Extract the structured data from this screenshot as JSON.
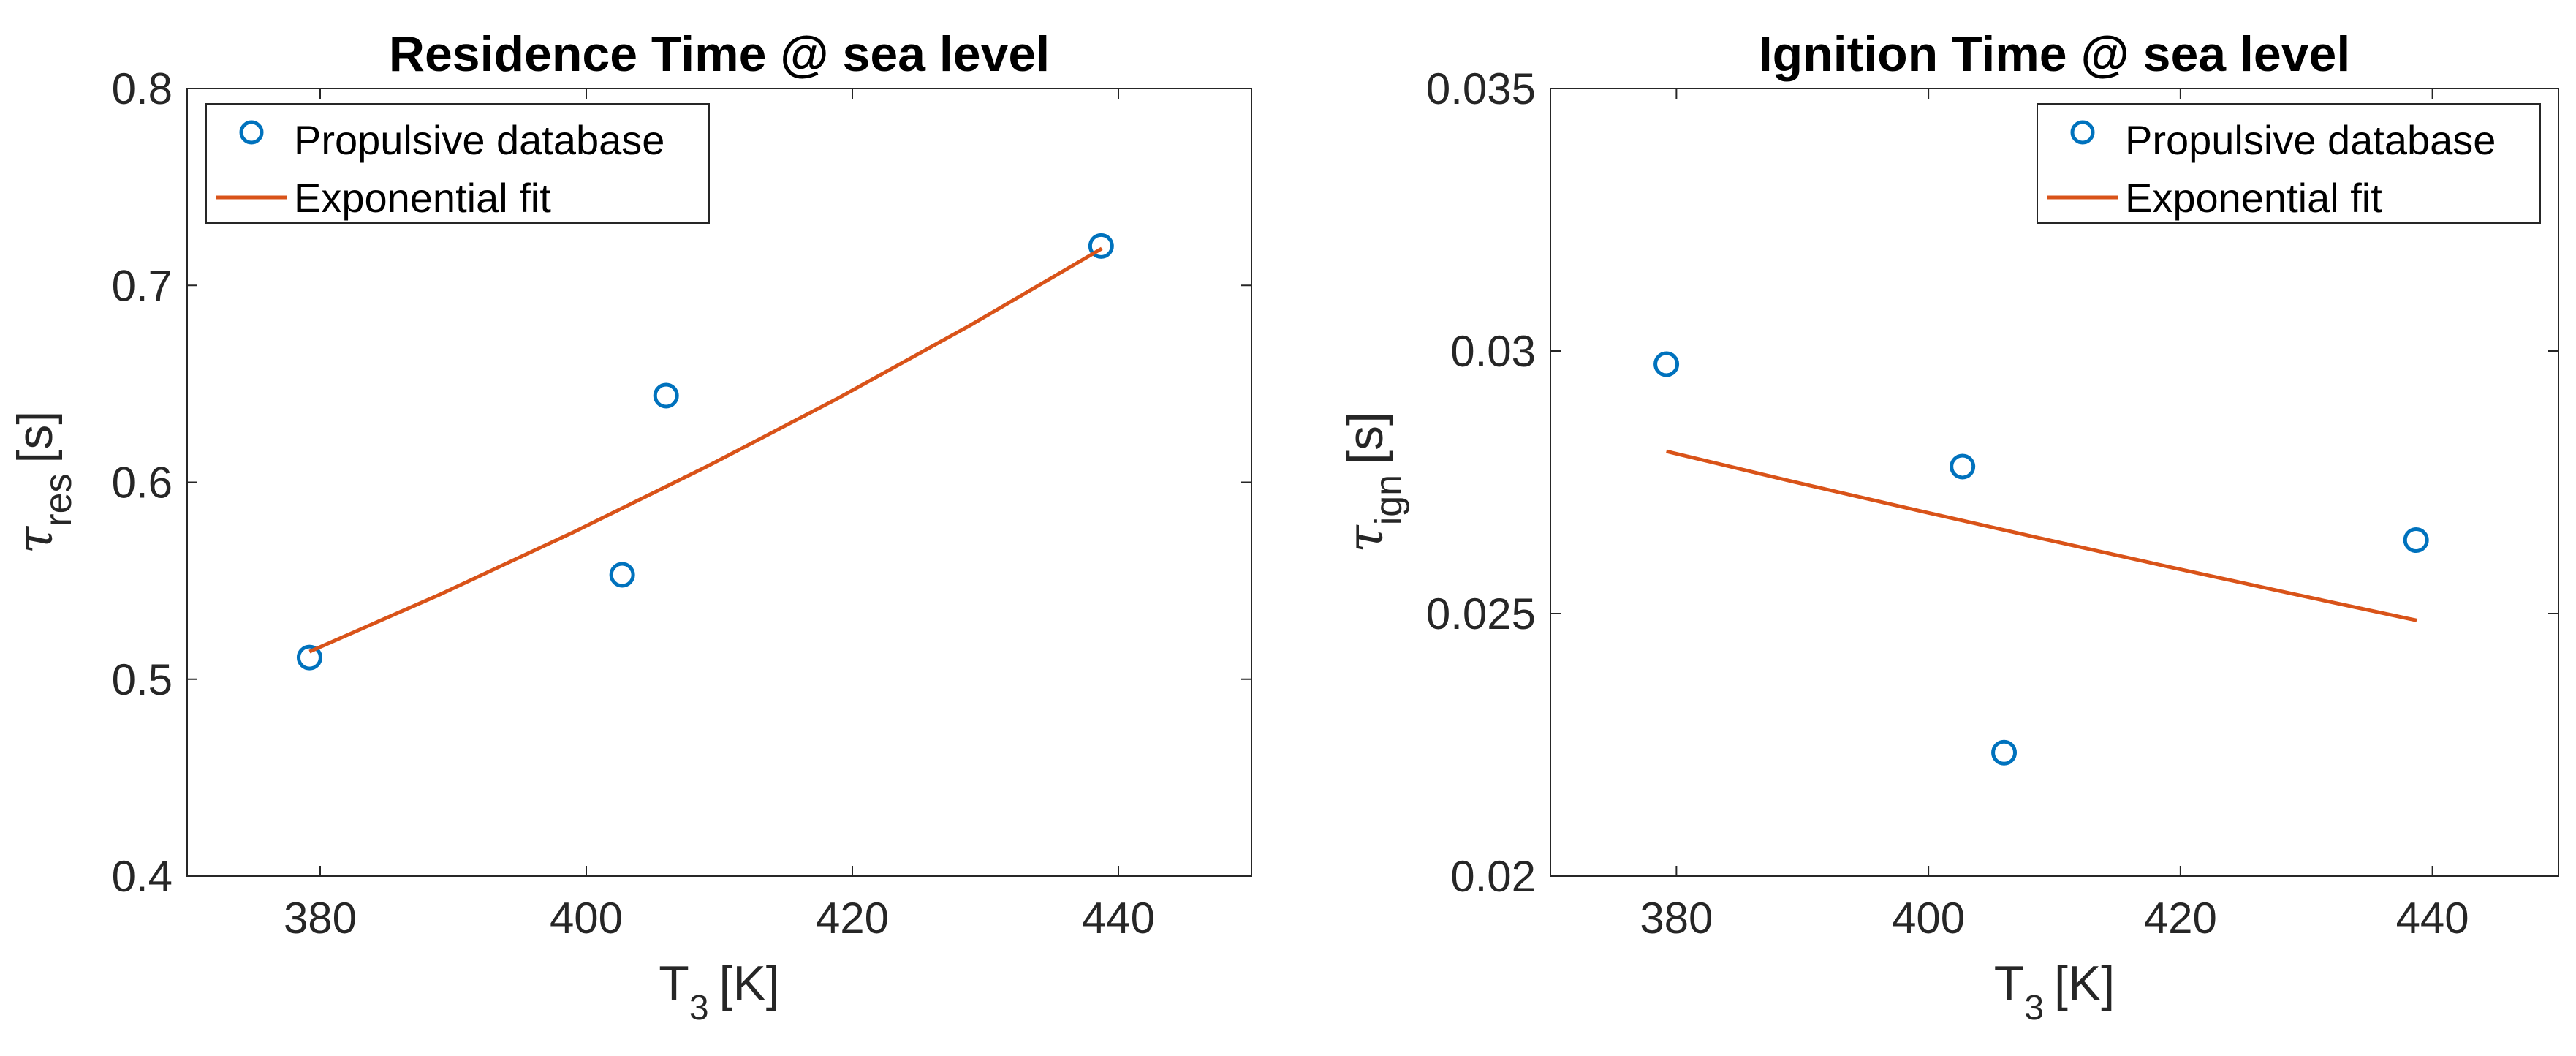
{
  "chart_data": [
    {
      "type": "scatter",
      "title": "Residence Time @ sea level",
      "xlabel": {
        "main": "T",
        "sub": "3",
        "unit": "[K]"
      },
      "ylabel": {
        "main": "τ",
        "sub": "res",
        "unit": "[s]"
      },
      "xlim": [
        370,
        450
      ],
      "ylim": [
        0.4,
        0.8
      ],
      "xticks": [
        380,
        400,
        420,
        440
      ],
      "xtick_labels": [
        "380",
        "400",
        "420",
        "440"
      ],
      "yticks": [
        0.4,
        0.5,
        0.6,
        0.7,
        0.8
      ],
      "ytick_labels": [
        "0.4",
        "0.5",
        "0.6",
        "0.7",
        "0.8"
      ],
      "grid": false,
      "legend_position": "top-left",
      "series": [
        {
          "name": "Propulsive database",
          "kind": "markers",
          "color": "#0072BD",
          "points": [
            [
              379.2,
              0.511
            ],
            [
              402.7,
              0.553
            ],
            [
              406.0,
              0.644
            ],
            [
              438.7,
              0.72
            ]
          ]
        },
        {
          "name": "Exponential fit",
          "kind": "line",
          "color": "#D95319",
          "points": [
            [
              379.2,
              0.514
            ],
            [
              389.125,
              0.5434
            ],
            [
              399.05,
              0.5747
            ],
            [
              408.975,
              0.6077
            ],
            [
              418.9,
              0.6426
            ],
            [
              428.825,
              0.6796
            ],
            [
              438.75,
              0.7187
            ]
          ]
        }
      ]
    },
    {
      "type": "scatter",
      "title": "Ignition Time @ sea level",
      "xlabel": {
        "main": "T",
        "sub": "3",
        "unit": "[K]"
      },
      "ylabel": {
        "main": "τ",
        "sub": "ign",
        "unit": "[s]"
      },
      "xlim": [
        370,
        450
      ],
      "ylim": [
        0.02,
        0.035
      ],
      "xticks": [
        380,
        400,
        420,
        440
      ],
      "xtick_labels": [
        "380",
        "400",
        "420",
        "440"
      ],
      "yticks": [
        0.02,
        0.025,
        0.03,
        0.035
      ],
      "ytick_labels": [
        "0.02",
        "0.025",
        "0.03",
        "0.035"
      ],
      "grid": false,
      "legend_position": "top-right",
      "series": [
        {
          "name": "Propulsive database",
          "kind": "markers",
          "color": "#0072BD",
          "points": [
            [
              379.2,
              0.02975
            ],
            [
              402.7,
              0.0278
            ],
            [
              406.0,
              0.02235
            ],
            [
              438.7,
              0.0264
            ]
          ]
        },
        {
          "name": "Exponential fit",
          "kind": "line",
          "color": "#D95319",
          "points": [
            [
              379.2,
              0.02809
            ],
            [
              389.125,
              0.02752
            ],
            [
              399.05,
              0.02697
            ],
            [
              408.975,
              0.02643
            ],
            [
              418.9,
              0.0259
            ],
            [
              428.825,
              0.02538
            ],
            [
              438.75,
              0.02487
            ]
          ]
        }
      ]
    }
  ]
}
